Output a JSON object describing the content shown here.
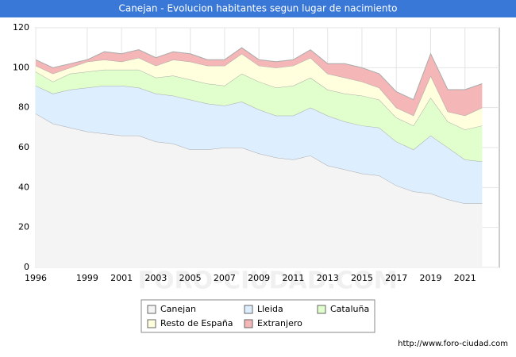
{
  "chart_data": {
    "type": "stacked_area",
    "title": "Canejan - Evolucion habitantes segun lugar de nacimiento",
    "x": [
      1996,
      1997,
      1998,
      1999,
      2000,
      2001,
      2002,
      2003,
      2004,
      2005,
      2006,
      2007,
      2008,
      2009,
      2010,
      2011,
      2012,
      2013,
      2014,
      2015,
      2016,
      2017,
      2018,
      2019,
      2020,
      2021,
      2022
    ],
    "series": [
      {
        "name": "Canejan",
        "color": "#f4f4f4",
        "values": [
          77,
          72,
          70,
          68,
          67,
          66,
          66,
          63,
          62,
          59,
          59,
          60,
          60,
          57,
          55,
          54,
          56,
          51,
          49,
          47,
          46,
          41,
          38,
          37,
          34,
          32,
          32
        ]
      },
      {
        "name": "Lleida",
        "color": "#ddeeff",
        "values": [
          14,
          15,
          19,
          22,
          24,
          25,
          24,
          24,
          24,
          25,
          23,
          21,
          23,
          22,
          21,
          22,
          24,
          25,
          24,
          24,
          24,
          22,
          21,
          29,
          26,
          22,
          21
        ]
      },
      {
        "name": "Cataluña",
        "color": "#e0ffcc",
        "values": [
          7,
          6,
          8,
          8,
          8,
          8,
          9,
          8,
          10,
          10,
          10,
          10,
          14,
          14,
          14,
          15,
          15,
          13,
          14,
          15,
          14,
          12,
          12,
          19,
          13,
          15,
          18
        ]
      },
      {
        "name": "Resto de España",
        "color": "#ffffdd",
        "values": [
          3,
          4,
          3,
          5,
          5,
          4,
          6,
          6,
          8,
          9,
          9,
          10,
          10,
          8,
          10,
          10,
          10,
          8,
          8,
          7,
          6,
          5,
          5,
          11,
          5,
          7,
          9
        ]
      },
      {
        "name": "Extranjero",
        "color": "#f4b6b6",
        "values": [
          3,
          3,
          2,
          1,
          4,
          4,
          4,
          4,
          4,
          4,
          3,
          3,
          3,
          3,
          3,
          3,
          4,
          5,
          7,
          7,
          7,
          8,
          8,
          11,
          11,
          13,
          12
        ]
      }
    ],
    "xlim": [
      1996,
      2023
    ],
    "xticks": [
      1996,
      1999,
      2001,
      2003,
      2005,
      2007,
      2009,
      2011,
      2013,
      2015,
      2017,
      2019,
      2021
    ],
    "ylim": [
      0,
      120
    ],
    "yticks": [
      0,
      20,
      40,
      60,
      80,
      100,
      120
    ],
    "grid": true,
    "watermark": "FORO-CIUDAD.COM",
    "source": "http://www.foro-ciudad.com"
  }
}
